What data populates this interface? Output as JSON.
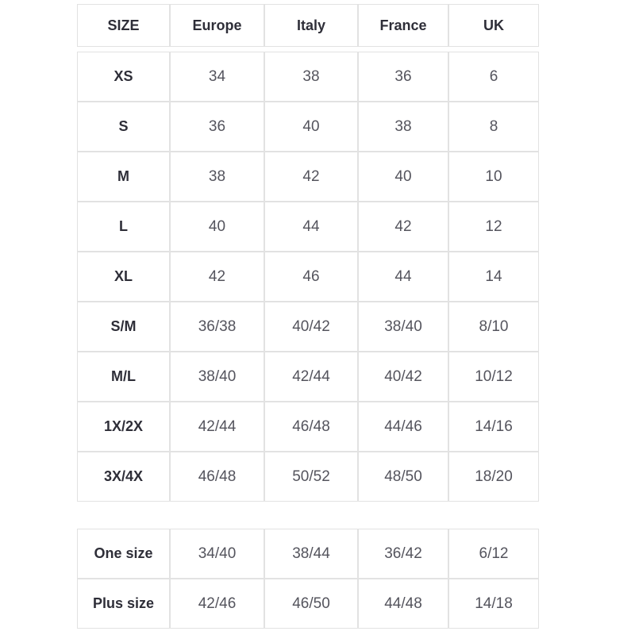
{
  "colors": {
    "background": "#ffffff",
    "border": "#e2e2e2",
    "header_text": "#2e2e38",
    "value_text": "#54545d"
  },
  "size_chart": {
    "headers": {
      "size": "SIZE",
      "europe": "Europe",
      "italy": "Italy",
      "france": "France",
      "uk": "UK"
    },
    "main_rows": [
      {
        "label": "XS",
        "europe": "34",
        "italy": "38",
        "france": "36",
        "uk": "6"
      },
      {
        "label": "S",
        "europe": "36",
        "italy": "40",
        "france": "38",
        "uk": "8"
      },
      {
        "label": "M",
        "europe": "38",
        "italy": "42",
        "france": "40",
        "uk": "10"
      },
      {
        "label": "L",
        "europe": "40",
        "italy": "44",
        "france": "42",
        "uk": "12"
      },
      {
        "label": "XL",
        "europe": "42",
        "italy": "46",
        "france": "44",
        "uk": "14"
      },
      {
        "label": "S/M",
        "europe": "36/38",
        "italy": "40/42",
        "france": "38/40",
        "uk": "8/10"
      },
      {
        "label": "M/L",
        "europe": "38/40",
        "italy": "42/44",
        "france": "40/42",
        "uk": "10/12"
      },
      {
        "label": "1X/2X",
        "europe": "42/44",
        "italy": "46/48",
        "france": "44/46",
        "uk": "14/16"
      },
      {
        "label": "3X/4X",
        "europe": "46/48",
        "italy": "50/52",
        "france": "48/50",
        "uk": "18/20"
      }
    ],
    "extra_rows": [
      {
        "label": "One size",
        "europe": "34/40",
        "italy": "38/44",
        "france": "36/42",
        "uk": "6/12"
      },
      {
        "label": "Plus size",
        "europe": "42/46",
        "italy": "46/50",
        "france": "44/48",
        "uk": "14/18"
      }
    ]
  },
  "chart_data": [
    {
      "type": "table",
      "columns": [
        "SIZE",
        "Europe",
        "Italy",
        "France",
        "UK"
      ],
      "rows": [
        [
          "XS",
          "34",
          "38",
          "36",
          "6"
        ],
        [
          "S",
          "36",
          "40",
          "38",
          "8"
        ],
        [
          "M",
          "38",
          "42",
          "40",
          "10"
        ],
        [
          "L",
          "40",
          "44",
          "42",
          "12"
        ],
        [
          "XL",
          "42",
          "46",
          "44",
          "14"
        ],
        [
          "S/M",
          "36/38",
          "40/42",
          "38/40",
          "8/10"
        ],
        [
          "M/L",
          "38/40",
          "42/44",
          "40/42",
          "10/12"
        ],
        [
          "1X/2X",
          "42/44",
          "46/48",
          "44/46",
          "14/16"
        ],
        [
          "3X/4X",
          "46/48",
          "50/52",
          "48/50",
          "18/20"
        ]
      ]
    },
    {
      "type": "table",
      "rows": [
        [
          "One size",
          "34/40",
          "38/44",
          "36/42",
          "6/12"
        ],
        [
          "Plus size",
          "42/46",
          "46/50",
          "44/48",
          "14/18"
        ]
      ]
    }
  ]
}
